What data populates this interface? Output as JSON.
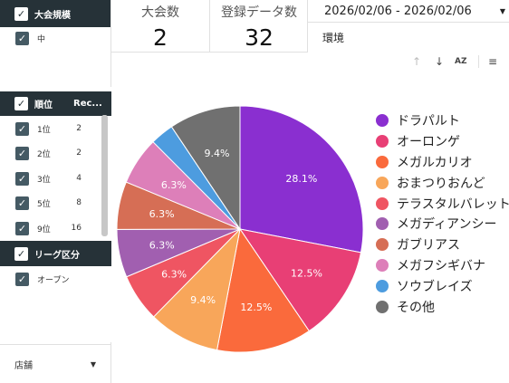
{
  "filters": {
    "tournament_scale": {
      "title": "大会規模",
      "items": [
        {
          "label": "中"
        }
      ]
    },
    "rank": {
      "title": "順位",
      "col2": "Rec...",
      "items": [
        {
          "label": "1位",
          "count": "2"
        },
        {
          "label": "2位",
          "count": "2"
        },
        {
          "label": "3位",
          "count": "4"
        },
        {
          "label": "5位",
          "count": "8"
        },
        {
          "label": "9位",
          "count": "16"
        }
      ]
    },
    "league": {
      "title": "リーグ区分",
      "items": [
        {
          "label": "オープン"
        }
      ]
    },
    "store": {
      "label": "店舗"
    }
  },
  "scorecards": {
    "tournaments": {
      "title": "大会数",
      "value": "2"
    },
    "registrations": {
      "title": "登録データ数",
      "value": "32"
    }
  },
  "date_range": {
    "value": "2026/02/06 - 2026/02/06"
  },
  "environment_label": "環境",
  "toolbar": {
    "up_icon": "↑",
    "down_icon": "↓",
    "sort_icon": "AZ",
    "filter_icon": "≡"
  },
  "chart_data": {
    "type": "pie",
    "slices": [
      {
        "label": "ドラパルト",
        "value": 28.1,
        "display": "28.1%",
        "color": "#8a2fd0"
      },
      {
        "label": "オーロンゲ",
        "value": 12.5,
        "display": "12.5%",
        "color": "#e83f75"
      },
      {
        "label": "メガルカリオ",
        "value": 12.5,
        "display": "12.5%",
        "color": "#fa6a3c"
      },
      {
        "label": "おまつりおんど",
        "value": 9.4,
        "display": "9.4%",
        "color": "#f8a65a"
      },
      {
        "label": "テラスタルバレット",
        "value": 6.3,
        "display": "6.3%",
        "color": "#ef5562"
      },
      {
        "label": "メガディアンシー",
        "value": 6.3,
        "display": "6.3%",
        "color": "#a15fb0"
      },
      {
        "label": "ガブリアス",
        "value": 6.3,
        "display": "6.3%",
        "color": "#d66e55"
      },
      {
        "label": "メガフシギバナ",
        "value": 6.3,
        "display": "6.3%",
        "color": "#dd7fb9"
      },
      {
        "label": "ソウブレイズ",
        "value": 3.1,
        "display": "",
        "color": "#4d9cdf"
      },
      {
        "label": "その他",
        "value": 9.4,
        "display": "9.4%",
        "color": "#707070"
      }
    ]
  }
}
